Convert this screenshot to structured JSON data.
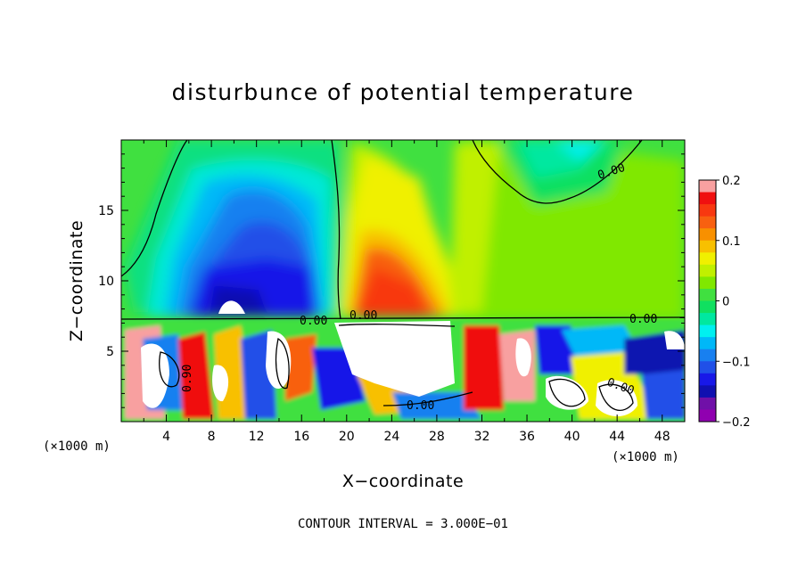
{
  "chart_data": {
    "type": "heatmap",
    "title": "disturbunce of potential temperature",
    "xlabel": "X−coordinate",
    "ylabel": "Z−coordinate",
    "x_unit_left": "(×1000 m)",
    "x_unit_right": "(×1000 m)",
    "xlim": [
      0,
      50
    ],
    "ylim": [
      0,
      20
    ],
    "x_ticks": [
      4,
      8,
      12,
      16,
      20,
      24,
      28,
      32,
      36,
      40,
      44,
      48
    ],
    "x_tick_labels": [
      "4",
      "8",
      "12",
      "16",
      "20",
      "24",
      "28",
      "32",
      "36",
      "40",
      "44",
      "48"
    ],
    "y_ticks": [
      5,
      10,
      15
    ],
    "y_tick_labels": [
      "5",
      "10",
      "15"
    ],
    "colorbar": {
      "range": [
        -0.2,
        0.2
      ],
      "ticks": [
        0.2,
        0.1,
        0,
        -0.1,
        -0.2
      ],
      "tick_labels": [
        "0.2",
        "0.1",
        "0",
        "−0.1",
        "−0.2"
      ],
      "colors": [
        "#f8a0a0",
        "#f01010",
        "#f83810",
        "#f86010",
        "#f89000",
        "#f8c000",
        "#f0f000",
        "#c0f000",
        "#80e800",
        "#40e040",
        "#10e060",
        "#00e8a0",
        "#00f0f0",
        "#00b8f8",
        "#1880f0",
        "#2050e8",
        "#1818e8",
        "#1010b0",
        "#7010a8",
        "#9000b0"
      ]
    },
    "contour_labels": [
      "0.00",
      "0.00",
      "0.00",
      "0.00",
      "0.00",
      "0.90",
      "0.00"
    ],
    "footer": "CONTOUR INTERVAL = 3.000E−01"
  }
}
